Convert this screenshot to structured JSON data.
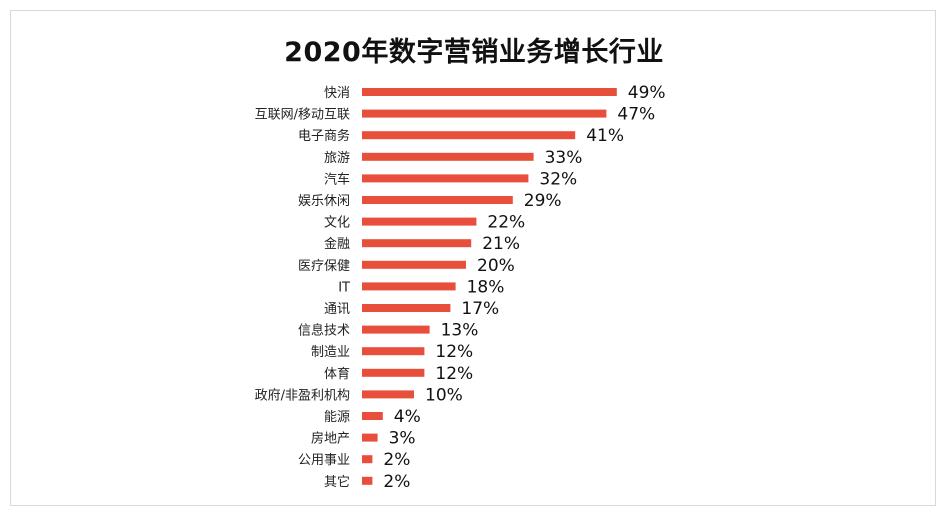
{
  "chart_data": {
    "type": "bar",
    "orientation": "horizontal",
    "title": "2020年数字营销业务增长行业",
    "categories": [
      "快消",
      "互联网/移动互联",
      "电子商务",
      "旅游",
      "汽车",
      "娱乐休闲",
      "文化",
      "金融",
      "医疗保健",
      "IT",
      "通讯",
      "信息技术",
      "制造业",
      "体育",
      "政府/非盈利机构",
      "能源",
      "房地产",
      "公用事业",
      "其它"
    ],
    "values": [
      49,
      47,
      41,
      33,
      32,
      29,
      22,
      21,
      20,
      18,
      17,
      13,
      12,
      12,
      10,
      4,
      3,
      2,
      2
    ],
    "value_labels": [
      "49%",
      "47%",
      "41%",
      "33%",
      "32%",
      "29%",
      "22%",
      "21%",
      "20%",
      "18%",
      "17%",
      "13%",
      "12%",
      "12%",
      "10%",
      "4%",
      "3%",
      "2%",
      "2%"
    ],
    "unit": "%",
    "xlim": [
      0,
      50
    ],
    "grid": false,
    "legend": "none",
    "bar_color": "#e84e3c"
  }
}
